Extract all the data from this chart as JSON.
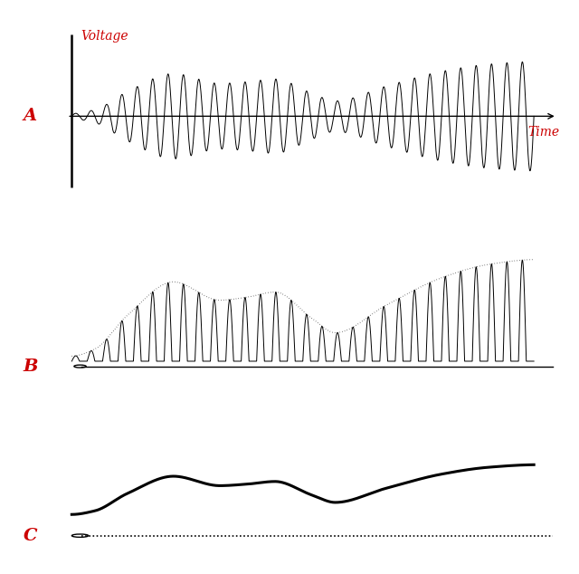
{
  "background_color": "#ffffff",
  "panel_A": {
    "label": "A",
    "ylabel": "Voltage",
    "xlabel": "Time",
    "carrier_freq": 30,
    "label_color": "#cc0000",
    "line_color": "#000000",
    "line_width": 0.7
  },
  "panel_B": {
    "label": "B",
    "carrier_freq": 30,
    "label_color": "#cc0000",
    "line_color": "#000000",
    "envelope_color": "#333333",
    "line_width": 0.7,
    "envelope_lw": 0.8
  },
  "panel_C": {
    "label": "C",
    "label_color": "#cc0000",
    "line_color": "#000000",
    "line_width": 2.2,
    "baseline_lw": 1.2
  }
}
